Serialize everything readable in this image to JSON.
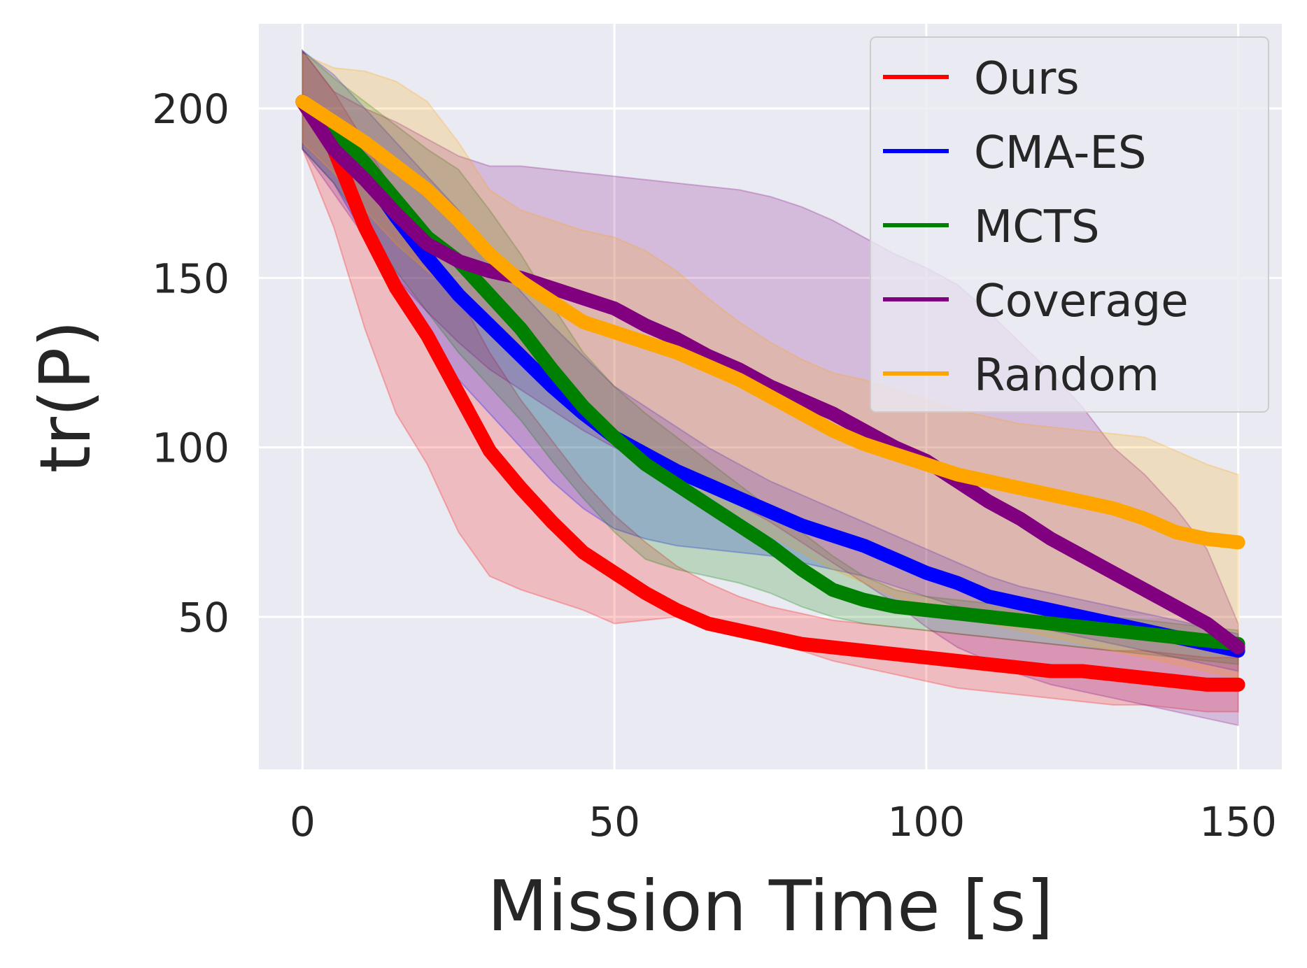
{
  "chart_data": {
    "type": "line",
    "title": "",
    "xlabel": "Mission Time [s]",
    "ylabel": "tr(P)",
    "xlim": [
      -7,
      157
    ],
    "ylim": [
      5,
      225
    ],
    "xticks": [
      0,
      50,
      100,
      150
    ],
    "yticks": [
      50,
      100,
      150,
      200
    ],
    "grid": true,
    "legend_position": "top-right",
    "x": [
      0,
      5,
      10,
      15,
      20,
      25,
      30,
      35,
      40,
      45,
      50,
      55,
      60,
      65,
      70,
      75,
      80,
      85,
      90,
      95,
      100,
      105,
      110,
      115,
      120,
      125,
      130,
      135,
      140,
      145,
      150
    ],
    "series": [
      {
        "name": "Ours",
        "color": "#ff0000",
        "values": [
          202,
          188,
          165,
          147,
          133,
          116,
          99,
          88,
          78,
          69,
          63,
          57,
          52,
          48,
          46,
          44,
          42,
          41,
          40,
          39,
          38,
          37,
          36,
          35,
          34,
          34,
          33,
          32,
          31,
          30,
          30
        ],
        "upper": [
          217,
          205,
          190,
          174,
          160,
          145,
          128,
          114,
          102,
          90,
          80,
          72,
          65,
          60,
          56,
          53,
          51,
          49,
          48,
          47,
          46,
          45,
          44,
          43,
          42,
          41,
          40,
          40,
          39,
          38,
          38
        ],
        "lower": [
          188,
          165,
          135,
          110,
          95,
          75,
          62,
          58,
          55,
          52,
          48,
          49,
          50,
          48,
          45,
          43,
          40,
          37,
          35,
          33,
          31,
          29,
          28,
          27,
          26,
          25,
          24,
          24,
          23,
          22,
          22
        ]
      },
      {
        "name": "CMA-ES",
        "color": "#0000ff",
        "values": [
          202,
          194,
          181,
          168,
          156,
          145,
          136,
          127,
          118,
          110,
          103,
          98,
          93,
          89,
          85,
          81,
          77,
          74,
          71,
          67,
          63,
          60,
          56,
          54,
          52,
          50,
          48,
          46,
          44,
          42,
          40
        ],
        "upper": [
          217,
          210,
          200,
          190,
          180,
          170,
          158,
          146,
          136,
          127,
          118,
          112,
          106,
          100,
          95,
          90,
          86,
          82,
          78,
          74,
          70,
          66,
          62,
          59,
          57,
          55,
          53,
          51,
          49,
          47,
          45
        ],
        "lower": [
          188,
          178,
          162,
          146,
          132,
          120,
          110,
          100,
          90,
          82,
          76,
          73,
          71,
          70,
          69,
          68,
          66,
          64,
          62,
          59,
          56,
          53,
          50,
          48,
          46,
          44,
          42,
          40,
          38,
          36,
          34
        ]
      },
      {
        "name": "MCTS",
        "color": "#008000",
        "values": [
          202,
          194,
          184,
          173,
          162,
          155,
          145,
          135,
          123,
          112,
          103,
          95,
          89,
          83,
          77,
          71,
          64,
          58,
          55,
          53,
          52,
          51,
          50,
          49,
          48,
          47,
          46,
          45,
          44,
          43,
          42
        ],
        "upper": [
          217,
          209,
          202,
          195,
          188,
          182,
          170,
          157,
          142,
          128,
          118,
          110,
          103,
          96,
          89,
          82,
          75,
          68,
          62,
          58,
          56,
          55,
          54,
          53,
          52,
          51,
          50,
          49,
          48,
          47,
          46
        ],
        "lower": [
          188,
          178,
          165,
          152,
          140,
          128,
          118,
          108,
          96,
          85,
          75,
          67,
          64,
          62,
          60,
          57,
          53,
          50,
          48,
          47,
          46,
          45,
          44,
          43,
          42,
          41,
          40,
          39,
          38,
          37,
          36
        ]
      },
      {
        "name": "Coverage",
        "color": "#800080",
        "values": [
          202,
          188,
          179,
          169,
          160,
          155,
          152,
          150,
          147,
          144,
          141,
          136,
          132,
          127,
          123,
          118,
          114,
          110,
          105,
          100,
          96,
          90,
          84,
          79,
          73,
          68,
          63,
          58,
          53,
          48,
          41
        ],
        "upper": [
          217,
          205,
          200,
          196,
          191,
          186,
          183,
          183,
          182,
          181,
          180,
          179,
          178,
          177,
          176,
          174,
          171,
          167,
          162,
          157,
          153,
          148,
          140,
          131,
          122,
          112,
          100,
          92,
          82,
          70,
          48
        ],
        "lower": [
          188,
          175,
          162,
          150,
          140,
          131,
          123,
          117,
          111,
          105,
          100,
          96,
          92,
          88,
          83,
          78,
          72,
          66,
          60,
          54,
          47,
          41,
          37,
          33,
          30,
          28,
          26,
          24,
          22,
          20,
          18
        ]
      },
      {
        "name": "Random",
        "color": "#ffa500",
        "values": [
          202,
          196,
          190,
          183,
          176,
          167,
          157,
          149,
          143,
          137,
          134,
          131,
          128,
          124,
          120,
          115,
          110,
          105,
          101,
          98,
          95,
          92,
          90,
          88,
          86,
          84,
          82,
          79,
          75,
          73,
          72
        ],
        "upper": [
          216,
          212,
          211,
          208,
          202,
          190,
          176,
          170,
          167,
          164,
          162,
          158,
          152,
          144,
          137,
          131,
          126,
          122,
          120,
          117,
          114,
          111,
          109,
          107,
          106,
          105,
          104,
          103,
          99,
          95,
          92
        ],
        "lower": [
          190,
          181,
          170,
          160,
          152,
          145,
          135,
          126,
          118,
          110,
          103,
          97,
          92,
          86,
          80,
          74,
          69,
          64,
          60,
          56,
          53,
          50,
          48,
          46,
          44,
          42,
          40,
          38,
          36,
          34,
          32
        ]
      }
    ]
  }
}
